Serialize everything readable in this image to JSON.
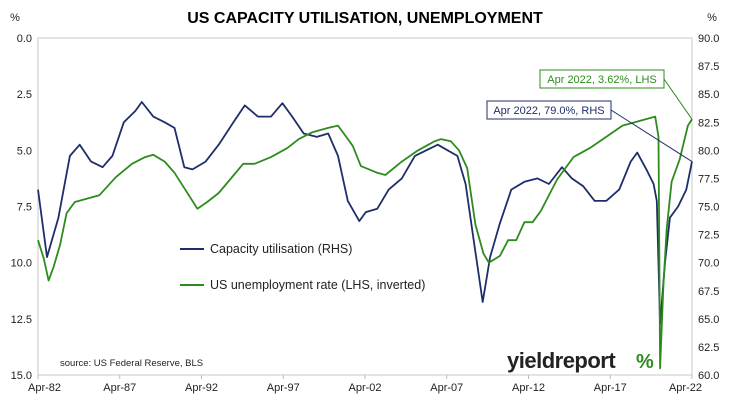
{
  "chart_data": {
    "type": "line",
    "title": "US CAPACITY UTILISATION, UNEMPLOYMENT",
    "left_axis": {
      "unit": "%",
      "inverted": true,
      "range": [
        0,
        15
      ],
      "ticks": [
        "0.0",
        "2.5",
        "5.0",
        "7.5",
        "10.0",
        "12.5",
        "15.0"
      ]
    },
    "right_axis": {
      "unit": "%",
      "range": [
        60,
        90
      ],
      "ticks": [
        "90.0",
        "87.5",
        "85.0",
        "82.5",
        "80.0",
        "77.5",
        "75.0",
        "72.5",
        "70.0",
        "67.5",
        "65.0",
        "62.5",
        "60.0"
      ]
    },
    "x_ticks": [
      "Apr-82",
      "Apr-87",
      "Apr-92",
      "Apr-97",
      "Apr-02",
      "Apr-07",
      "Apr-12",
      "Apr-17",
      "Apr-22"
    ],
    "x_range": [
      1982.25,
      2022.25
    ],
    "grid": false,
    "series": [
      {
        "name": "Capacity utilisation (RHS)",
        "axis": "right",
        "color": "#1f2d6b",
        "x": [
          1982.25,
          1982.8,
          1983.5,
          1984.2,
          1984.8,
          1985.5,
          1986.2,
          1986.8,
          1987.5,
          1988.2,
          1988.6,
          1989.3,
          1990.0,
          1990.6,
          1991.2,
          1991.7,
          1992.5,
          1993.3,
          1994.2,
          1994.9,
          1995.7,
          1996.5,
          1997.2,
          1997.8,
          1998.5,
          1999.3,
          2000.0,
          2000.6,
          2001.2,
          2001.9,
          2002.3,
          2003.0,
          2003.7,
          2004.5,
          2005.3,
          2006.0,
          2006.7,
          2007.3,
          2007.9,
          2008.4,
          2008.9,
          2009.45,
          2009.9,
          2010.5,
          2011.2,
          2012.0,
          2012.8,
          2013.5,
          2014.3,
          2014.9,
          2015.6,
          2016.3,
          2017.0,
          2017.8,
          2018.5,
          2018.9,
          2019.5,
          2019.9,
          2020.1,
          2020.3,
          2020.6,
          2020.9,
          2021.4,
          2021.9,
          2022.25
        ],
        "y": [
          76.5,
          70.5,
          74.0,
          79.5,
          80.5,
          79.0,
          78.5,
          79.5,
          82.5,
          83.5,
          84.3,
          83.0,
          82.5,
          82.0,
          78.5,
          78.3,
          79.0,
          80.5,
          82.5,
          84.0,
          83.0,
          83.0,
          84.2,
          83.0,
          81.5,
          81.2,
          81.5,
          79.5,
          75.5,
          73.7,
          74.5,
          74.8,
          76.5,
          77.5,
          79.5,
          80.0,
          80.5,
          80.0,
          79.5,
          77.0,
          72.0,
          66.5,
          70.5,
          73.5,
          76.5,
          77.2,
          77.5,
          77.0,
          78.5,
          77.5,
          76.8,
          75.5,
          75.5,
          76.5,
          79.0,
          79.8,
          78.2,
          77.0,
          75.5,
          64.5,
          70.0,
          74.0,
          75.0,
          76.5,
          79.0
        ]
      },
      {
        "name": "US unemployment rate (LHS, inverted)",
        "axis": "left",
        "color": "#2e8b1e",
        "x": [
          1982.25,
          1982.6,
          1982.9,
          1983.2,
          1983.6,
          1984.0,
          1984.5,
          1985.0,
          1986.0,
          1987.0,
          1987.5,
          1988.0,
          1988.8,
          1989.3,
          1990.0,
          1990.6,
          1991.3,
          1992.0,
          1992.6,
          1993.3,
          1994.0,
          1994.8,
          1995.5,
          1996.5,
          1997.5,
          1998.2,
          1999.0,
          2000.0,
          2000.6,
          2001.0,
          2001.5,
          2002.0,
          2003.0,
          2003.5,
          2004.5,
          2005.5,
          2006.5,
          2006.9,
          2007.5,
          2008.0,
          2008.5,
          2009.0,
          2009.5,
          2009.83,
          2010.5,
          2011.0,
          2011.5,
          2012.0,
          2012.5,
          2013.0,
          2014.0,
          2015.0,
          2016.0,
          2017.0,
          2018.0,
          2019.0,
          2019.5,
          2020.0,
          2020.2,
          2020.3,
          2020.5,
          2020.7,
          2021.0,
          2021.5,
          2022.0,
          2022.25
        ],
        "y": [
          9.0,
          9.8,
          10.8,
          10.2,
          9.2,
          7.8,
          7.3,
          7.2,
          7.0,
          6.2,
          5.9,
          5.6,
          5.3,
          5.2,
          5.5,
          6.0,
          6.8,
          7.6,
          7.3,
          6.9,
          6.3,
          5.6,
          5.6,
          5.3,
          4.9,
          4.5,
          4.2,
          4.0,
          3.9,
          4.3,
          4.8,
          5.7,
          6.0,
          6.1,
          5.5,
          5.0,
          4.6,
          4.5,
          4.6,
          5.0,
          5.8,
          8.3,
          9.6,
          10.0,
          9.7,
          9.0,
          9.0,
          8.2,
          8.2,
          7.7,
          6.3,
          5.3,
          4.9,
          4.4,
          3.9,
          3.7,
          3.6,
          3.5,
          4.4,
          14.7,
          11.0,
          8.5,
          6.4,
          5.4,
          3.9,
          3.62
        ]
      }
    ],
    "legend": {
      "placement": "center-left"
    },
    "annotations": [
      {
        "text": "Apr 2022, 3.62%, LHS",
        "series": 1,
        "x": 2022.25,
        "y": 3.62,
        "color": "#2e8b1e"
      },
      {
        "text": "Apr 2022, 79.0%, RHS",
        "series": 0,
        "x": 2022.25,
        "y": 79.0,
        "color": "#1f2d6b"
      }
    ],
    "source": "source: US Federal Reserve, BLS"
  },
  "branding": {
    "logo_text": "yieldreport",
    "logo_symbol": "%"
  }
}
